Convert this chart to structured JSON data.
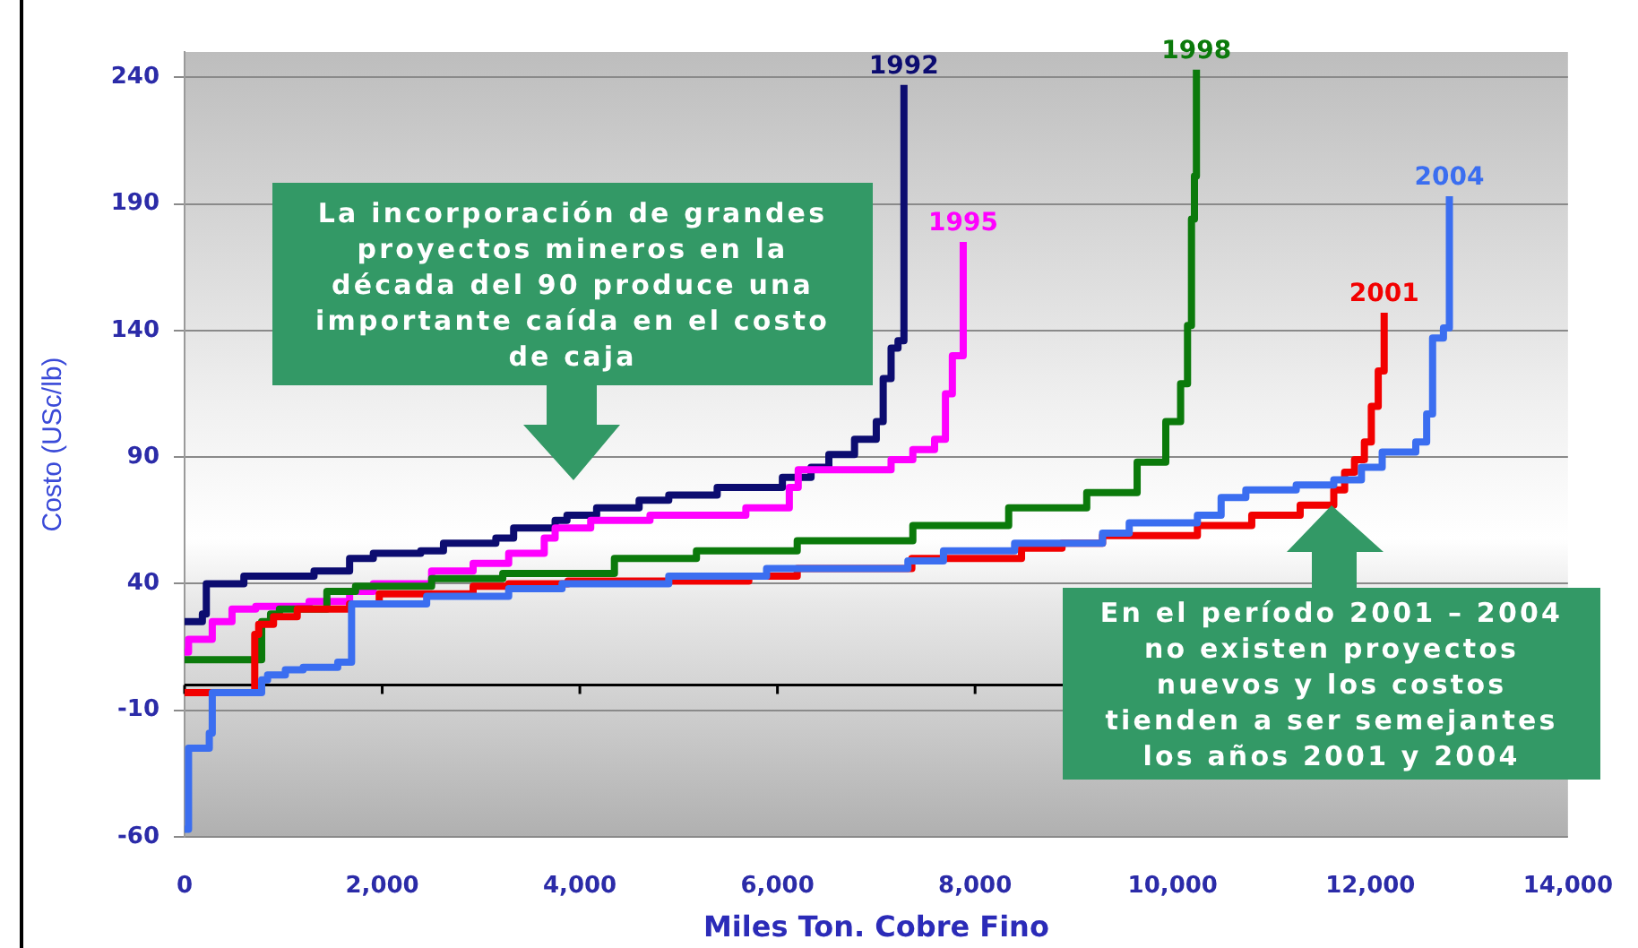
{
  "chart_data": {
    "type": "step",
    "xlabel": "Miles Ton. Cobre Fino",
    "ylabel": "Costo (USc/lb)",
    "xlim": [
      0,
      14000
    ],
    "xticks": [
      0,
      {
        "value": 2000,
        "label": "2,000"
      },
      {
        "value": 4000,
        "label": "4,000"
      },
      {
        "value": 6000,
        "label": "6,000"
      },
      {
        "value": 8000,
        "label": "8,000"
      },
      {
        "value": 10000,
        "label": "10,000"
      },
      {
        "value": 12000,
        "label": "12,000"
      },
      {
        "value": 14000,
        "label": "14,000"
      }
    ],
    "ylim": [
      -60,
      250
    ],
    "yticks": [
      -60,
      -10,
      40,
      90,
      140,
      190,
      240
    ],
    "grid": "y",
    "ref_lines": [
      {
        "axis": "y",
        "value": 0,
        "color": "#000000"
      }
    ],
    "annotations": [
      "La incorporación de grandes\nproyectos mineros en la\ndécada del 90 produce una\nimportante caída en el costo\nde caja",
      "En el período 2001 – 2004\nno existen proyectos\nnuevos y los costos\ntienden a ser semejantes\nlos años 2001 y 2004"
    ],
    "series": [
      {
        "name": "1992",
        "color": "#0c0c70",
        "x": [
          0,
          180,
          220,
          600,
          1310,
          1670,
          1910,
          2390,
          2620,
          3150,
          3330,
          3750,
          3870,
          4170,
          4600,
          4900,
          5390,
          6050,
          6340,
          6520,
          6780,
          7000,
          7070,
          7150,
          7220,
          7280
        ],
        "values": [
          25,
          28,
          40,
          43,
          45,
          50,
          52,
          53,
          56,
          58,
          62,
          65,
          67,
          70,
          73,
          75,
          78,
          82,
          86,
          91,
          97,
          104,
          121,
          133,
          136,
          237
        ]
      },
      {
        "name": "1995",
        "color": "#ff00ff",
        "x": [
          0,
          40,
          280,
          480,
          720,
          1260,
          1670,
          1910,
          2500,
          2920,
          3280,
          3640,
          3750,
          4110,
          4710,
          5680,
          6120,
          6210,
          7150,
          7370,
          7590,
          7700,
          7770,
          7880
        ],
        "values": [
          13,
          18,
          25,
          30,
          31,
          33,
          37,
          40,
          45,
          48,
          52,
          58,
          62,
          65,
          67,
          70,
          78,
          85,
          89,
          93,
          97,
          115,
          130,
          175
        ]
      },
      {
        "name": "1998",
        "color": "#0b7a0b",
        "x": [
          0,
          780,
          870,
          960,
          1440,
          1730,
          2500,
          3220,
          4350,
          5180,
          6200,
          7370,
          8340,
          9130,
          9640,
          9930,
          10080,
          10150,
          10190,
          10220,
          10240
        ],
        "values": [
          10,
          25,
          28,
          30,
          37,
          39,
          42,
          44,
          50,
          53,
          57,
          63,
          70,
          76,
          88,
          104,
          119,
          142,
          184,
          201,
          243
        ]
      },
      {
        "name": "2001",
        "color": "#f20000",
        "x": [
          0,
          710,
          750,
          900,
          1140,
          1670,
          1970,
          2920,
          3280,
          3880,
          5710,
          6200,
          7360,
          8470,
          8880,
          9290,
          10250,
          10800,
          11290,
          11630,
          11740,
          11840,
          11940,
          12010,
          12080,
          12140
        ],
        "values": [
          -3,
          20,
          24,
          27,
          30,
          32,
          36,
          39,
          40,
          41,
          43,
          46,
          50,
          54,
          56,
          59,
          63,
          67,
          71,
          77,
          84,
          89,
          96,
          110,
          124,
          147
        ]
      },
      {
        "name": "2004",
        "color": "#3b6ef0",
        "x": [
          0,
          40,
          250,
          280,
          780,
          840,
          1020,
          1200,
          1550,
          1690,
          2450,
          3280,
          3820,
          4900,
          5890,
          7320,
          7680,
          8400,
          9290,
          9560,
          10250,
          10490,
          10740,
          11250,
          11630,
          11910,
          12120,
          12460,
          12570,
          12630,
          12740,
          12800
        ],
        "values": [
          -57,
          -25,
          -19,
          -3,
          2,
          4,
          6,
          7,
          9,
          32,
          35,
          38,
          40,
          43,
          46,
          49,
          53,
          56,
          60,
          64,
          67,
          74,
          77,
          79,
          81,
          86,
          92,
          96,
          107,
          137,
          141,
          193
        ]
      }
    ]
  }
}
